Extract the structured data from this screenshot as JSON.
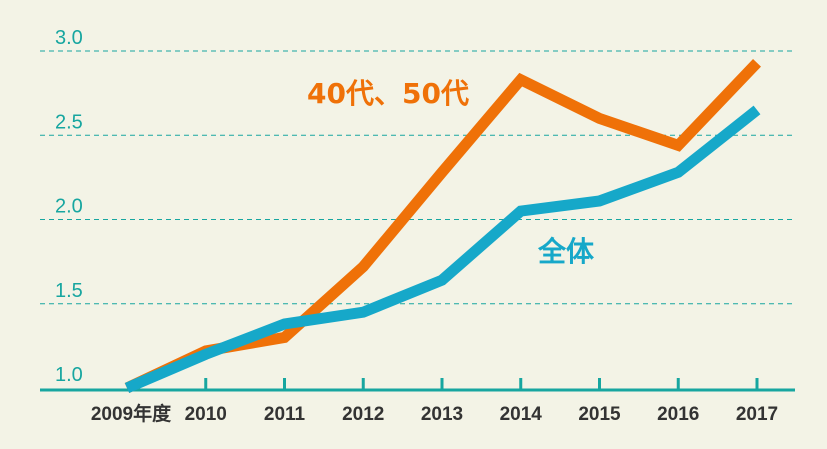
{
  "chart_data": {
    "type": "line",
    "categories": [
      "2009年度",
      "2010",
      "2011",
      "2012",
      "2013",
      "2014",
      "2015",
      "2016",
      "2017"
    ],
    "ylim": [
      1.0,
      3.0
    ],
    "yticks": [
      "1.0",
      "1.5",
      "2.0",
      "2.5",
      "3.0"
    ],
    "grid": true,
    "series": [
      {
        "name": "40代、50代",
        "color": "#ef7108",
        "values": [
          1.0,
          1.22,
          1.3,
          1.72,
          2.28,
          2.83,
          2.6,
          2.44,
          2.93
        ]
      },
      {
        "name": "全体",
        "color": "#16a8c9",
        "values": [
          1.0,
          1.2,
          1.38,
          1.45,
          1.64,
          2.05,
          2.11,
          2.28,
          2.65
        ]
      }
    ]
  },
  "colors": {
    "background": "#f3f3e6",
    "grid": "#17a6a0",
    "axis": "#17a6a0",
    "tick_text": "#17a6a0",
    "category_text": "#333333"
  }
}
